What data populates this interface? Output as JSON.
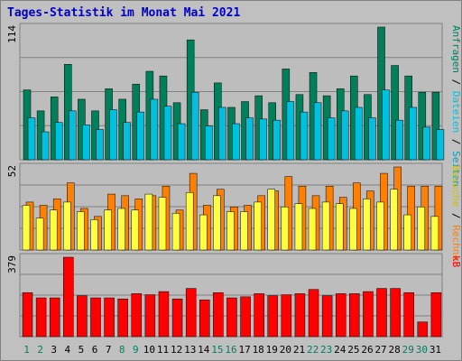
{
  "title": "Tages-Statistik im Monat Mai 2021",
  "colors": {
    "background": "#c0c0c0",
    "panel": "#bdbdbd",
    "title": "#0000c8",
    "hits": "#00805a",
    "files": "#00c0e0",
    "pages": "#00a0c0",
    "visits": "#ffff40",
    "sites": "#ff8000",
    "kb": "#ff0000",
    "weekday_label": "#00805a",
    "weekend_label": "#00805a"
  },
  "chart_data": [
    {
      "type": "bar",
      "name": "top",
      "ymax_label": "114",
      "ylim": [
        0,
        114
      ],
      "right_labels": [
        {
          "text": "Anfragen",
          "color": "#00805a"
        },
        {
          "text": " / ",
          "color": "#000000"
        },
        {
          "text": "Dateien",
          "color": "#00c0e0"
        },
        {
          "text": " / ",
          "color": "#000000"
        },
        {
          "text": "Seiten",
          "color": "#00a0c0"
        }
      ],
      "categories": [
        "1",
        "2",
        "3",
        "4",
        "5",
        "6",
        "7",
        "8",
        "9",
        "10",
        "11",
        "12",
        "13",
        "14",
        "15",
        "16",
        "17",
        "18",
        "19",
        "20",
        "21",
        "22",
        "23",
        "24",
        "25",
        "26",
        "27",
        "28",
        "29",
        "30",
        "31"
      ],
      "series": [
        {
          "name": "Anfragen",
          "color": "#00805a",
          "values": [
            60,
            42,
            54,
            82,
            52,
            42,
            61,
            52,
            65,
            76,
            72,
            49,
            103,
            43,
            66,
            45,
            50,
            55,
            49,
            78,
            56,
            75,
            55,
            61,
            72,
            56,
            114,
            81,
            72,
            58,
            58
          ]
        },
        {
          "name": "Dateien",
          "color": "#00c0e0",
          "values": [
            36,
            24,
            32,
            42,
            30,
            26,
            43,
            32,
            41,
            52,
            46,
            31,
            58,
            29,
            45,
            31,
            36,
            35,
            34,
            50,
            41,
            49,
            36,
            42,
            45,
            36,
            60,
            34,
            45,
            28,
            26
          ]
        }
      ]
    },
    {
      "type": "bar",
      "name": "middle",
      "ymax_label": "52",
      "ylim": [
        0,
        52
      ],
      "right_labels": [
        {
          "text": "Besuche",
          "color": "#d0c000"
        },
        {
          "text": " / ",
          "color": "#000000"
        },
        {
          "text": "Rechner",
          "color": "#ff8000"
        }
      ],
      "categories": [
        "1",
        "2",
        "3",
        "4",
        "5",
        "6",
        "7",
        "8",
        "9",
        "10",
        "11",
        "12",
        "13",
        "14",
        "15",
        "16",
        "17",
        "18",
        "19",
        "20",
        "21",
        "22",
        "23",
        "24",
        "25",
        "26",
        "27",
        "28",
        "29",
        "30",
        "31"
      ],
      "series": [
        {
          "name": "Besuche",
          "color": "#ffff40",
          "values": [
            28,
            20,
            25,
            30,
            24,
            19,
            25,
            26,
            25,
            35,
            33,
            23,
            36,
            22,
            34,
            24,
            24,
            30,
            38,
            27,
            29,
            26,
            30,
            29,
            26,
            32,
            30,
            38,
            22,
            27,
            21
          ]
        },
        {
          "name": "Rechner",
          "color": "#ff8000",
          "values": [
            30,
            28,
            32,
            42,
            26,
            21,
            35,
            34,
            32,
            34,
            40,
            25,
            48,
            28,
            38,
            27,
            28,
            34,
            37,
            46,
            40,
            34,
            40,
            33,
            42,
            37,
            48,
            52,
            40,
            40,
            40
          ]
        }
      ]
    },
    {
      "type": "bar",
      "name": "bottom",
      "ymax_label": "379",
      "ylim": [
        0,
        379
      ],
      "right_labels": [
        {
          "text": "kB",
          "color": "#ff0000"
        }
      ],
      "categories": [
        "1",
        "2",
        "3",
        "4",
        "5",
        "6",
        "7",
        "8",
        "9",
        "10",
        "11",
        "12",
        "13",
        "14",
        "15",
        "16",
        "17",
        "18",
        "19",
        "20",
        "21",
        "22",
        "23",
        "24",
        "25",
        "26",
        "27",
        "28",
        "29",
        "30",
        "31"
      ],
      "series": [
        {
          "name": "kB",
          "color": "#ff0000",
          "values": [
            210,
            185,
            185,
            379,
            195,
            185,
            185,
            180,
            205,
            200,
            215,
            180,
            230,
            175,
            210,
            185,
            190,
            205,
            195,
            200,
            205,
            225,
            195,
            205,
            205,
            215,
            230,
            230,
            210,
            70,
            210
          ]
        }
      ]
    }
  ],
  "day_labels": [
    "1",
    "2",
    "3",
    "4",
    "5",
    "6",
    "7",
    "8",
    "9",
    "10",
    "11",
    "12",
    "13",
    "14",
    "15",
    "16",
    "17",
    "18",
    "19",
    "20",
    "21",
    "22",
    "23",
    "24",
    "25",
    "26",
    "27",
    "28",
    "29",
    "30",
    "31"
  ],
  "weekend_days": [
    "1",
    "2",
    "8",
    "9",
    "15",
    "16",
    "22",
    "23",
    "29",
    "30"
  ]
}
